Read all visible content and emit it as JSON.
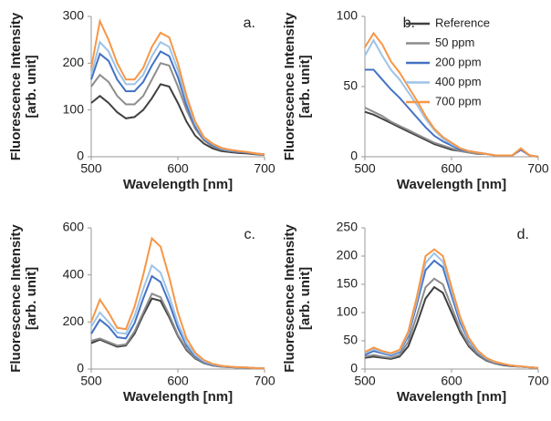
{
  "chart_data": [
    {
      "type": "line",
      "title": "a.",
      "xlabel": "Wavelength [nm]",
      "ylabel": [
        "Fluorescence Intensity",
        "[arb. unit]"
      ],
      "x": [
        500,
        510,
        520,
        530,
        540,
        550,
        560,
        570,
        580,
        590,
        600,
        610,
        620,
        630,
        640,
        650,
        660,
        670,
        680,
        690,
        700
      ],
      "xlim": [
        500,
        700
      ],
      "xticks": [
        500,
        600,
        700
      ],
      "ylim": [
        0,
        300
      ],
      "yticks": [
        0,
        100,
        200,
        300
      ],
      "series": [
        {
          "color": "#404040",
          "values": [
            115,
            130,
            115,
            95,
            82,
            85,
            100,
            125,
            155,
            150,
            115,
            75,
            45,
            28,
            18,
            12,
            10,
            8,
            7,
            5,
            4
          ]
        },
        {
          "color": "#8c8c8c",
          "values": [
            150,
            175,
            160,
            130,
            112,
            112,
            130,
            165,
            200,
            195,
            150,
            100,
            60,
            35,
            22,
            15,
            12,
            10,
            9,
            6,
            5
          ]
        },
        {
          "color": "#4472c4",
          "values": [
            165,
            220,
            205,
            165,
            140,
            140,
            160,
            195,
            225,
            215,
            170,
            110,
            65,
            38,
            25,
            17,
            13,
            11,
            9,
            7,
            5
          ]
        },
        {
          "color": "#9dc3e6",
          "values": [
            175,
            245,
            225,
            185,
            155,
            155,
            175,
            215,
            245,
            235,
            185,
            120,
            70,
            40,
            27,
            18,
            14,
            12,
            10,
            7,
            5
          ]
        },
        {
          "color": "#f79646",
          "values": [
            190,
            290,
            250,
            200,
            165,
            165,
            190,
            235,
            265,
            255,
            200,
            130,
            75,
            42,
            28,
            19,
            15,
            12,
            10,
            7,
            5
          ]
        }
      ]
    },
    {
      "type": "line",
      "title": "b.",
      "xlabel": "Wavelength [nm]",
      "ylabel": [
        "Fluorescence Intensity",
        "[arb. unit]"
      ],
      "x": [
        500,
        510,
        520,
        530,
        540,
        550,
        560,
        570,
        580,
        590,
        600,
        610,
        620,
        630,
        640,
        650,
        660,
        670,
        680,
        690,
        700
      ],
      "xlim": [
        500,
        700
      ],
      "xticks": [
        500,
        600,
        700
      ],
      "ylim": [
        0,
        100
      ],
      "yticks": [
        0,
        50,
        100
      ],
      "legend": "upper right",
      "series": [
        {
          "name": "Reference",
          "color": "#404040",
          "values": [
            32,
            30,
            27,
            24,
            21,
            18,
            15,
            12,
            9,
            7,
            5,
            4,
            3,
            2,
            2,
            1,
            1,
            1,
            5,
            1,
            0
          ]
        },
        {
          "name": "50 ppm",
          "color": "#8c8c8c",
          "values": [
            35,
            32,
            29,
            25,
            22,
            19,
            16,
            13,
            10,
            8,
            6,
            4,
            3,
            2,
            2,
            1,
            1,
            1,
            5,
            1,
            0
          ]
        },
        {
          "name": "200 ppm",
          "color": "#4472c4",
          "values": [
            62,
            62,
            55,
            48,
            42,
            35,
            28,
            21,
            15,
            11,
            8,
            5,
            4,
            3,
            2,
            1,
            1,
            1,
            5,
            1,
            0
          ]
        },
        {
          "name": "400 ppm",
          "color": "#9dc3e6",
          "values": [
            72,
            83,
            72,
            62,
            55,
            46,
            37,
            27,
            19,
            13,
            9,
            6,
            4,
            3,
            2,
            1,
            1,
            1,
            6,
            1,
            0
          ]
        },
        {
          "name": "700 ppm",
          "color": "#f79646",
          "values": [
            78,
            88,
            80,
            68,
            60,
            50,
            40,
            29,
            20,
            14,
            10,
            6,
            4,
            3,
            2,
            1,
            1,
            1,
            6,
            1,
            0
          ]
        }
      ]
    },
    {
      "type": "line",
      "title": "c.",
      "xlabel": "Wavelength [nm]",
      "ylabel": [
        "Fluorescence Intensity",
        "[arb. unit]"
      ],
      "x": [
        500,
        510,
        520,
        530,
        540,
        550,
        560,
        570,
        580,
        590,
        600,
        610,
        620,
        630,
        640,
        650,
        660,
        670,
        680,
        690,
        700
      ],
      "xlim": [
        500,
        700
      ],
      "xticks": [
        500,
        600,
        700
      ],
      "ylim": [
        0,
        600
      ],
      "yticks": [
        0,
        200,
        400,
        600
      ],
      "series": [
        {
          "color": "#404040",
          "values": [
            110,
            125,
            110,
            95,
            100,
            150,
            230,
            300,
            290,
            220,
            140,
            80,
            45,
            25,
            15,
            10,
            8,
            6,
            5,
            4,
            3
          ]
        },
        {
          "color": "#8c8c8c",
          "values": [
            120,
            130,
            115,
            100,
            105,
            160,
            240,
            320,
            305,
            230,
            145,
            85,
            48,
            27,
            16,
            11,
            8,
            6,
            5,
            4,
            3
          ]
        },
        {
          "color": "#4472c4",
          "values": [
            150,
            210,
            180,
            135,
            130,
            195,
            300,
            395,
            370,
            280,
            175,
            100,
            55,
            30,
            18,
            12,
            9,
            7,
            6,
            4,
            3
          ]
        },
        {
          "color": "#9dc3e6",
          "values": [
            180,
            240,
            200,
            155,
            150,
            225,
            340,
            440,
            410,
            310,
            195,
            110,
            60,
            33,
            20,
            13,
            10,
            7,
            6,
            4,
            3
          ]
        },
        {
          "color": "#f79646",
          "values": [
            200,
            295,
            240,
            175,
            170,
            265,
            400,
            555,
            520,
            390,
            240,
            130,
            70,
            38,
            22,
            14,
            10,
            8,
            6,
            4,
            3
          ]
        }
      ]
    },
    {
      "type": "line",
      "title": "d.",
      "xlabel": "Wavelength [nm]",
      "ylabel": [
        "Fluorescence Intensity",
        "[arb. unit]"
      ],
      "x": [
        500,
        510,
        520,
        530,
        540,
        550,
        560,
        570,
        580,
        590,
        600,
        610,
        620,
        630,
        640,
        650,
        660,
        670,
        680,
        690,
        700
      ],
      "xlim": [
        500,
        700
      ],
      "xticks": [
        500,
        600,
        700
      ],
      "ylim": [
        0,
        250
      ],
      "yticks": [
        0,
        50,
        100,
        150,
        200,
        250
      ],
      "series": [
        {
          "color": "#404040",
          "values": [
            20,
            22,
            20,
            18,
            22,
            40,
            80,
            125,
            145,
            135,
            100,
            65,
            40,
            25,
            15,
            10,
            7,
            5,
            4,
            3,
            2
          ]
        },
        {
          "color": "#8c8c8c",
          "values": [
            22,
            25,
            22,
            20,
            25,
            48,
            95,
            145,
            160,
            150,
            110,
            70,
            43,
            27,
            16,
            11,
            8,
            6,
            4,
            3,
            2
          ]
        },
        {
          "color": "#4472c4",
          "values": [
            25,
            32,
            28,
            24,
            30,
            58,
            115,
            175,
            192,
            180,
            130,
            82,
            50,
            30,
            18,
            12,
            8,
            6,
            4,
            3,
            2
          ]
        },
        {
          "color": "#9dc3e6",
          "values": [
            28,
            35,
            30,
            26,
            32,
            62,
            122,
            188,
            205,
            190,
            138,
            88,
            52,
            31,
            19,
            12,
            9,
            6,
            4,
            3,
            2
          ]
        },
        {
          "color": "#f79646",
          "values": [
            30,
            38,
            32,
            28,
            34,
            66,
            128,
            200,
            212,
            200,
            145,
            92,
            55,
            33,
            20,
            13,
            9,
            6,
            5,
            3,
            2
          ]
        }
      ]
    }
  ]
}
